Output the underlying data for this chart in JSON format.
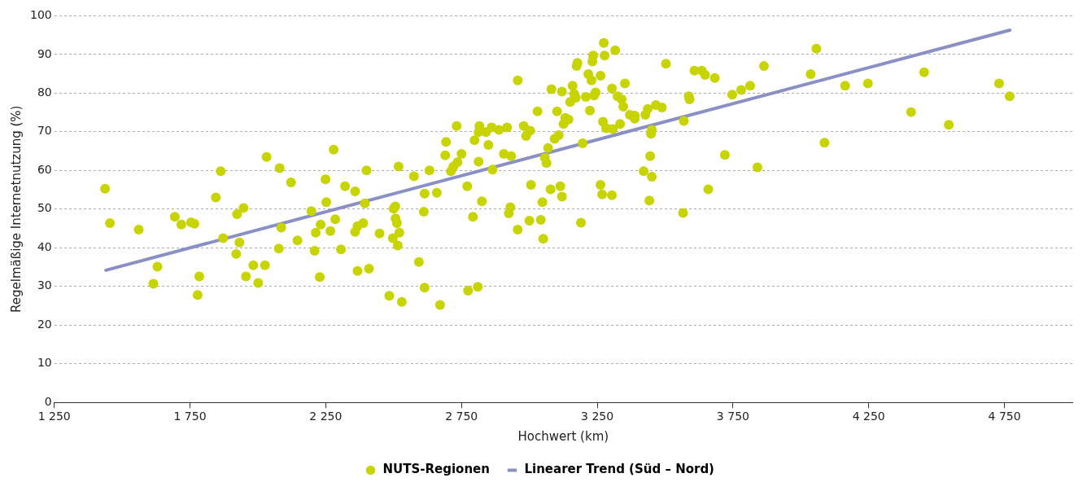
{
  "chart_data": {
    "type": "scatter",
    "xlabel": "Hochwert (km)",
    "ylabel": "Regelmäßige Internetnutzung (%)",
    "xlim": [
      1250,
      5000
    ],
    "ylim": [
      0,
      100
    ],
    "xticks": [
      {
        "value": 1250,
        "label": "1 250"
      },
      {
        "value": 1750,
        "label": "1 750"
      },
      {
        "value": 2250,
        "label": "2 250"
      },
      {
        "value": 2750,
        "label": "2 750"
      },
      {
        "value": 3250,
        "label": "3 250"
      },
      {
        "value": 3750,
        "label": "3 750"
      },
      {
        "value": 4250,
        "label": "4 250"
      },
      {
        "value": 4750,
        "label": "4 750"
      }
    ],
    "yticks": [
      0,
      10,
      20,
      30,
      40,
      50,
      60,
      70,
      80,
      90,
      100
    ],
    "grid": "y",
    "legend": "bottom",
    "series": [
      {
        "name": "NUTS-Regionen",
        "marker": "circle",
        "color": "#c8d400",
        "x": [
          1437,
          1455,
          1561,
          1630,
          1615,
          1694,
          1718,
          1754,
          1766,
          1784,
          1778,
          1845,
          1863,
          1872,
          1923,
          1947,
          1920,
          1932,
          1956,
          1983,
          2001,
          2026,
          2032,
          2080,
          2086,
          2077,
          2122,
          2146,
          2197,
          2213,
          2209,
          2228,
          2231,
          2249,
          2252,
          2267,
          2279,
          2285,
          2306,
          2321,
          2358,
          2358,
          2367,
          2367,
          2388,
          2394,
          2400,
          2409,
          2448,
          2484,
          2497,
          2506,
          2515,
          2518,
          2521,
          2530,
          2500,
          2507,
          2512,
          2575,
          2593,
          2611,
          2614,
          2614,
          2632,
          2659,
          2671,
          2690,
          2693,
          2711,
          2720,
          2732,
          2735,
          2750,
          2771,
          2774,
          2792,
          2798,
          2810,
          2813,
          2816,
          2813,
          2825,
          2840,
          2849,
          2861,
          2864,
          2888,
          2906,
          2918,
          2924,
          2930,
          2933,
          2957,
          2957,
          2979,
          2988,
          3000,
          3006,
          3003,
          3030,
          3042,
          3048,
          3051,
          3057,
          3063,
          3069,
          3078,
          3081,
          3093,
          3102,
          3108,
          3114,
          3120,
          3120,
          3126,
          3132,
          3144,
          3150,
          3159,
          3165,
          3171,
          3174,
          3177,
          3190,
          3196,
          3208,
          3217,
          3223,
          3229,
          3232,
          3235,
          3238,
          3244,
          3262,
          3262,
          3268,
          3271,
          3274,
          3277,
          3283,
          3304,
          3304,
          3307,
          3316,
          3325,
          3334,
          3340,
          3352,
          3346,
          3370,
          3388,
          3388,
          3421,
          3427,
          3436,
          3442,
          3445,
          3448,
          3451,
          3451,
          3466,
          3488,
          3503,
          3566,
          3569,
          3587,
          3590,
          3608,
          3635,
          3647,
          3659,
          3683,
          3720,
          3747,
          3780,
          3813,
          3840,
          3864,
          4036,
          4057,
          4087,
          4163,
          4247,
          4406,
          4454,
          4545,
          4730,
          4769
        ],
        "values": [
          55.3,
          46.4,
          44.7,
          35.1,
          30.7,
          48.0,
          46.0,
          46.6,
          46.2,
          32.6,
          27.8,
          53.0,
          59.8,
          42.5,
          48.7,
          50.3,
          38.4,
          41.4,
          32.6,
          35.5,
          30.9,
          35.5,
          63.5,
          60.6,
          45.2,
          39.8,
          56.9,
          41.9,
          49.5,
          43.9,
          39.2,
          32.4,
          46.0,
          57.7,
          51.8,
          44.3,
          65.4,
          47.4,
          39.6,
          55.9,
          54.6,
          44.1,
          45.6,
          34.0,
          46.4,
          51.5,
          60.0,
          34.6,
          43.7,
          27.6,
          42.5,
          50.7,
          40.6,
          61.0,
          43.9,
          26.0,
          50.1,
          47.6,
          46.4,
          58.5,
          36.3,
          49.3,
          29.7,
          54.0,
          60.0,
          54.2,
          25.2,
          63.9,
          67.4,
          59.8,
          61.0,
          71.5,
          62.1,
          64.3,
          55.9,
          28.9,
          48.0,
          67.8,
          29.9,
          62.3,
          71.5,
          69.9,
          52.0,
          69.9,
          66.6,
          71.1,
          60.2,
          70.5,
          64.3,
          71.1,
          48.9,
          50.5,
          63.7,
          44.7,
          83.3,
          71.5,
          68.9,
          47.0,
          56.3,
          70.3,
          75.3,
          47.2,
          51.8,
          42.3,
          63.3,
          61.9,
          65.8,
          55.1,
          81.0,
          68.2,
          75.3,
          69.1,
          55.9,
          80.4,
          53.2,
          72.0,
          73.6,
          73.2,
          77.7,
          81.9,
          79.8,
          78.8,
          87.0,
          87.8,
          46.5,
          67.0,
          79.0,
          84.9,
          75.5,
          83.3,
          88.2,
          89.7,
          79.4,
          80.2,
          84.5,
          56.3,
          53.8,
          72.6,
          93.0,
          89.7,
          70.9,
          53.6,
          81.2,
          70.7,
          91.1,
          79.2,
          72.0,
          78.4,
          82.5,
          76.5,
          74.4,
          73.4,
          74.2,
          59.8,
          74.4,
          75.9,
          52.2,
          63.7,
          69.5,
          70.5,
          58.4,
          76.9,
          76.3,
          87.6,
          49.0,
          72.8,
          79.2,
          78.4,
          85.8,
          85.8,
          84.7,
          55.1,
          83.9,
          64.0,
          79.6,
          80.8,
          81.9,
          60.8,
          87.0,
          84.9,
          91.5,
          67.2,
          81.9,
          82.5,
          75.1,
          85.4,
          71.8,
          82.5,
          79.2
        ]
      },
      {
        "name": "Linearer Trend (Süd – Nord)",
        "type": "line",
        "marker": "none",
        "color": "#8a8fc4",
        "x": [
          1440,
          4770
        ],
        "values": [
          34.2,
          96.3
        ]
      }
    ]
  }
}
